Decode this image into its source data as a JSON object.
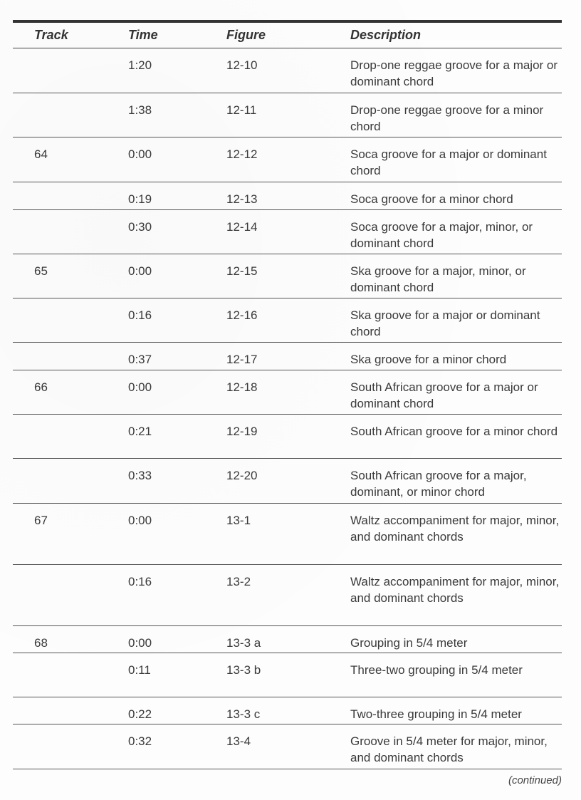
{
  "table": {
    "headers": {
      "track": "Track",
      "time": "Time",
      "figure": "Figure",
      "description": "Description"
    },
    "rows": [
      {
        "track": "",
        "time": "1:20",
        "figure": "12-10",
        "description": "Drop-one reggae groove for a major or dominant chord"
      },
      {
        "track": "",
        "time": "1:38",
        "figure": "12-11",
        "description": "Drop-one reggae groove for a minor chord"
      },
      {
        "track": "64",
        "time": "0:00",
        "figure": "12-12",
        "description": "Soca groove for a major or dominant chord"
      },
      {
        "track": "",
        "time": "0:19",
        "figure": "12-13",
        "description": "Soca groove for a minor chord"
      },
      {
        "track": "",
        "time": "0:30",
        "figure": "12-14",
        "description": "Soca groove for a major, minor, or dominant chord"
      },
      {
        "track": "65",
        "time": "0:00",
        "figure": "12-15",
        "description": "Ska groove for a major, minor, or dominant chord"
      },
      {
        "track": "",
        "time": "0:16",
        "figure": "12-16",
        "description": "Ska groove for a major or dominant chord"
      },
      {
        "track": "",
        "time": "0:37",
        "figure": "12-17",
        "description": "Ska groove for a minor chord"
      },
      {
        "track": "66",
        "time": "0:00",
        "figure": "12-18",
        "description": "South African groove for a major or dominant chord"
      },
      {
        "track": "",
        "time": "0:21",
        "figure": "12-19",
        "description": "South African groove for a minor chord"
      },
      {
        "track": "",
        "time": "0:33",
        "figure": "12-20",
        "description": "South African groove for a major, dominant, or minor chord"
      },
      {
        "track": "67",
        "time": "0:00",
        "figure": "13-1",
        "description": "Waltz accompaniment for major, minor, and dominant chords"
      },
      {
        "track": "",
        "time": "0:16",
        "figure": "13-2",
        "description": "Waltz accompaniment for major, minor, and dominant chords"
      },
      {
        "track": "68",
        "time": "0:00",
        "figure": "13-3 a",
        "description": "Grouping in 5/4 meter"
      },
      {
        "track": "",
        "time": "0:11",
        "figure": "13-3 b",
        "description": "Three-two grouping in 5/4 meter"
      },
      {
        "track": "",
        "time": "0:22",
        "figure": "13-3 c",
        "description": "Two-three grouping in 5/4 meter"
      },
      {
        "track": "",
        "time": "0:32",
        "figure": "13-4",
        "description": "Groove in 5/4 meter for major, minor, and dominant chords"
      }
    ]
  },
  "footer": {
    "continued": "(continued)"
  }
}
